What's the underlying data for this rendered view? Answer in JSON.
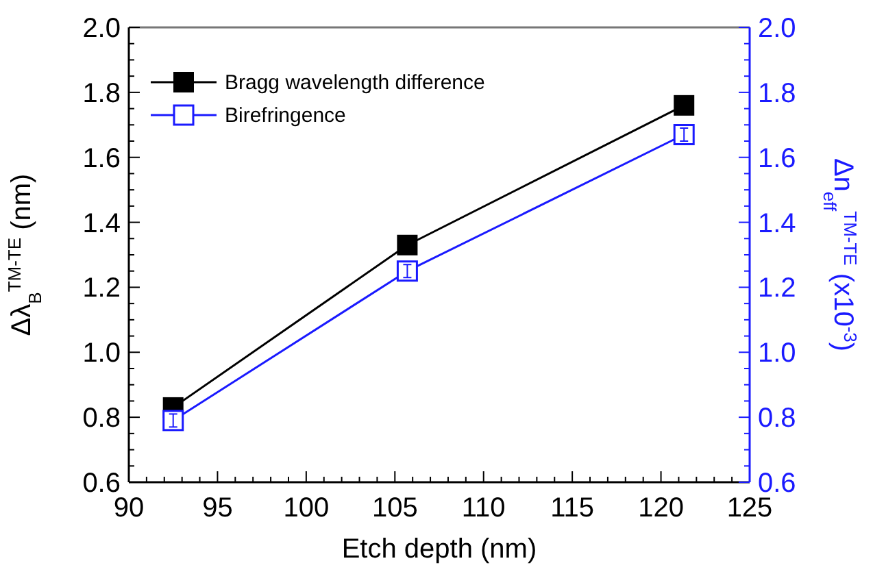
{
  "chart_data": {
    "type": "line",
    "xlabel": "Etch depth (nm)",
    "ylabel": "Δλ$_{B}$$^{TM-TE}$ (nm)",
    "y2label": "Δn$_{eff}$$^{TM-TE}$ (x10$^{-3}$)",
    "xlim": [
      90,
      125
    ],
    "xticks": [
      90,
      95,
      100,
      105,
      110,
      115,
      120,
      125
    ],
    "ylim": [
      0.6,
      2.0
    ],
    "yticks": [
      {
        "value": 0.6,
        "label": "0.6"
      },
      {
        "value": 0.8,
        "label": "0.8"
      },
      {
        "value": 1.0,
        "label": "1.0"
      },
      {
        "value": 1.2,
        "label": "1.2"
      },
      {
        "value": 1.4,
        "label": "1.4"
      },
      {
        "value": 1.6,
        "label": "1.6"
      },
      {
        "value": 1.8,
        "label": "1.8"
      },
      {
        "value": 2.0,
        "label": "2.0"
      }
    ],
    "y2lim": [
      0.6,
      2.0
    ],
    "y2ticks": [
      {
        "value": 0.6,
        "label": "0.6"
      },
      {
        "value": 0.8,
        "label": "0.8"
      },
      {
        "value": 1.0,
        "label": "1.0"
      },
      {
        "value": 1.2,
        "label": "1.2"
      },
      {
        "value": 1.4,
        "label": "1.4"
      },
      {
        "value": 1.6,
        "label": "1.6"
      },
      {
        "value": 1.8,
        "label": "1.8"
      },
      {
        "value": 2.0,
        "label": "2.0"
      }
    ],
    "x": [
      92.5,
      105.7,
      121.3
    ],
    "series": [
      {
        "name": "Bragg wavelength difference",
        "color": "#000000",
        "values": [
          0.83,
          1.33,
          1.76
        ],
        "marker": "square"
      },
      {
        "name": "Birefringence",
        "color": "#1a1aff",
        "values": [
          0.79,
          1.25,
          1.67
        ],
        "marker": "square_open",
        "axis": "y2",
        "errors": [
          0.02,
          0.02,
          0.02
        ]
      }
    ],
    "legend": "top left",
    "grid": false,
    "line_style": "solid"
  }
}
